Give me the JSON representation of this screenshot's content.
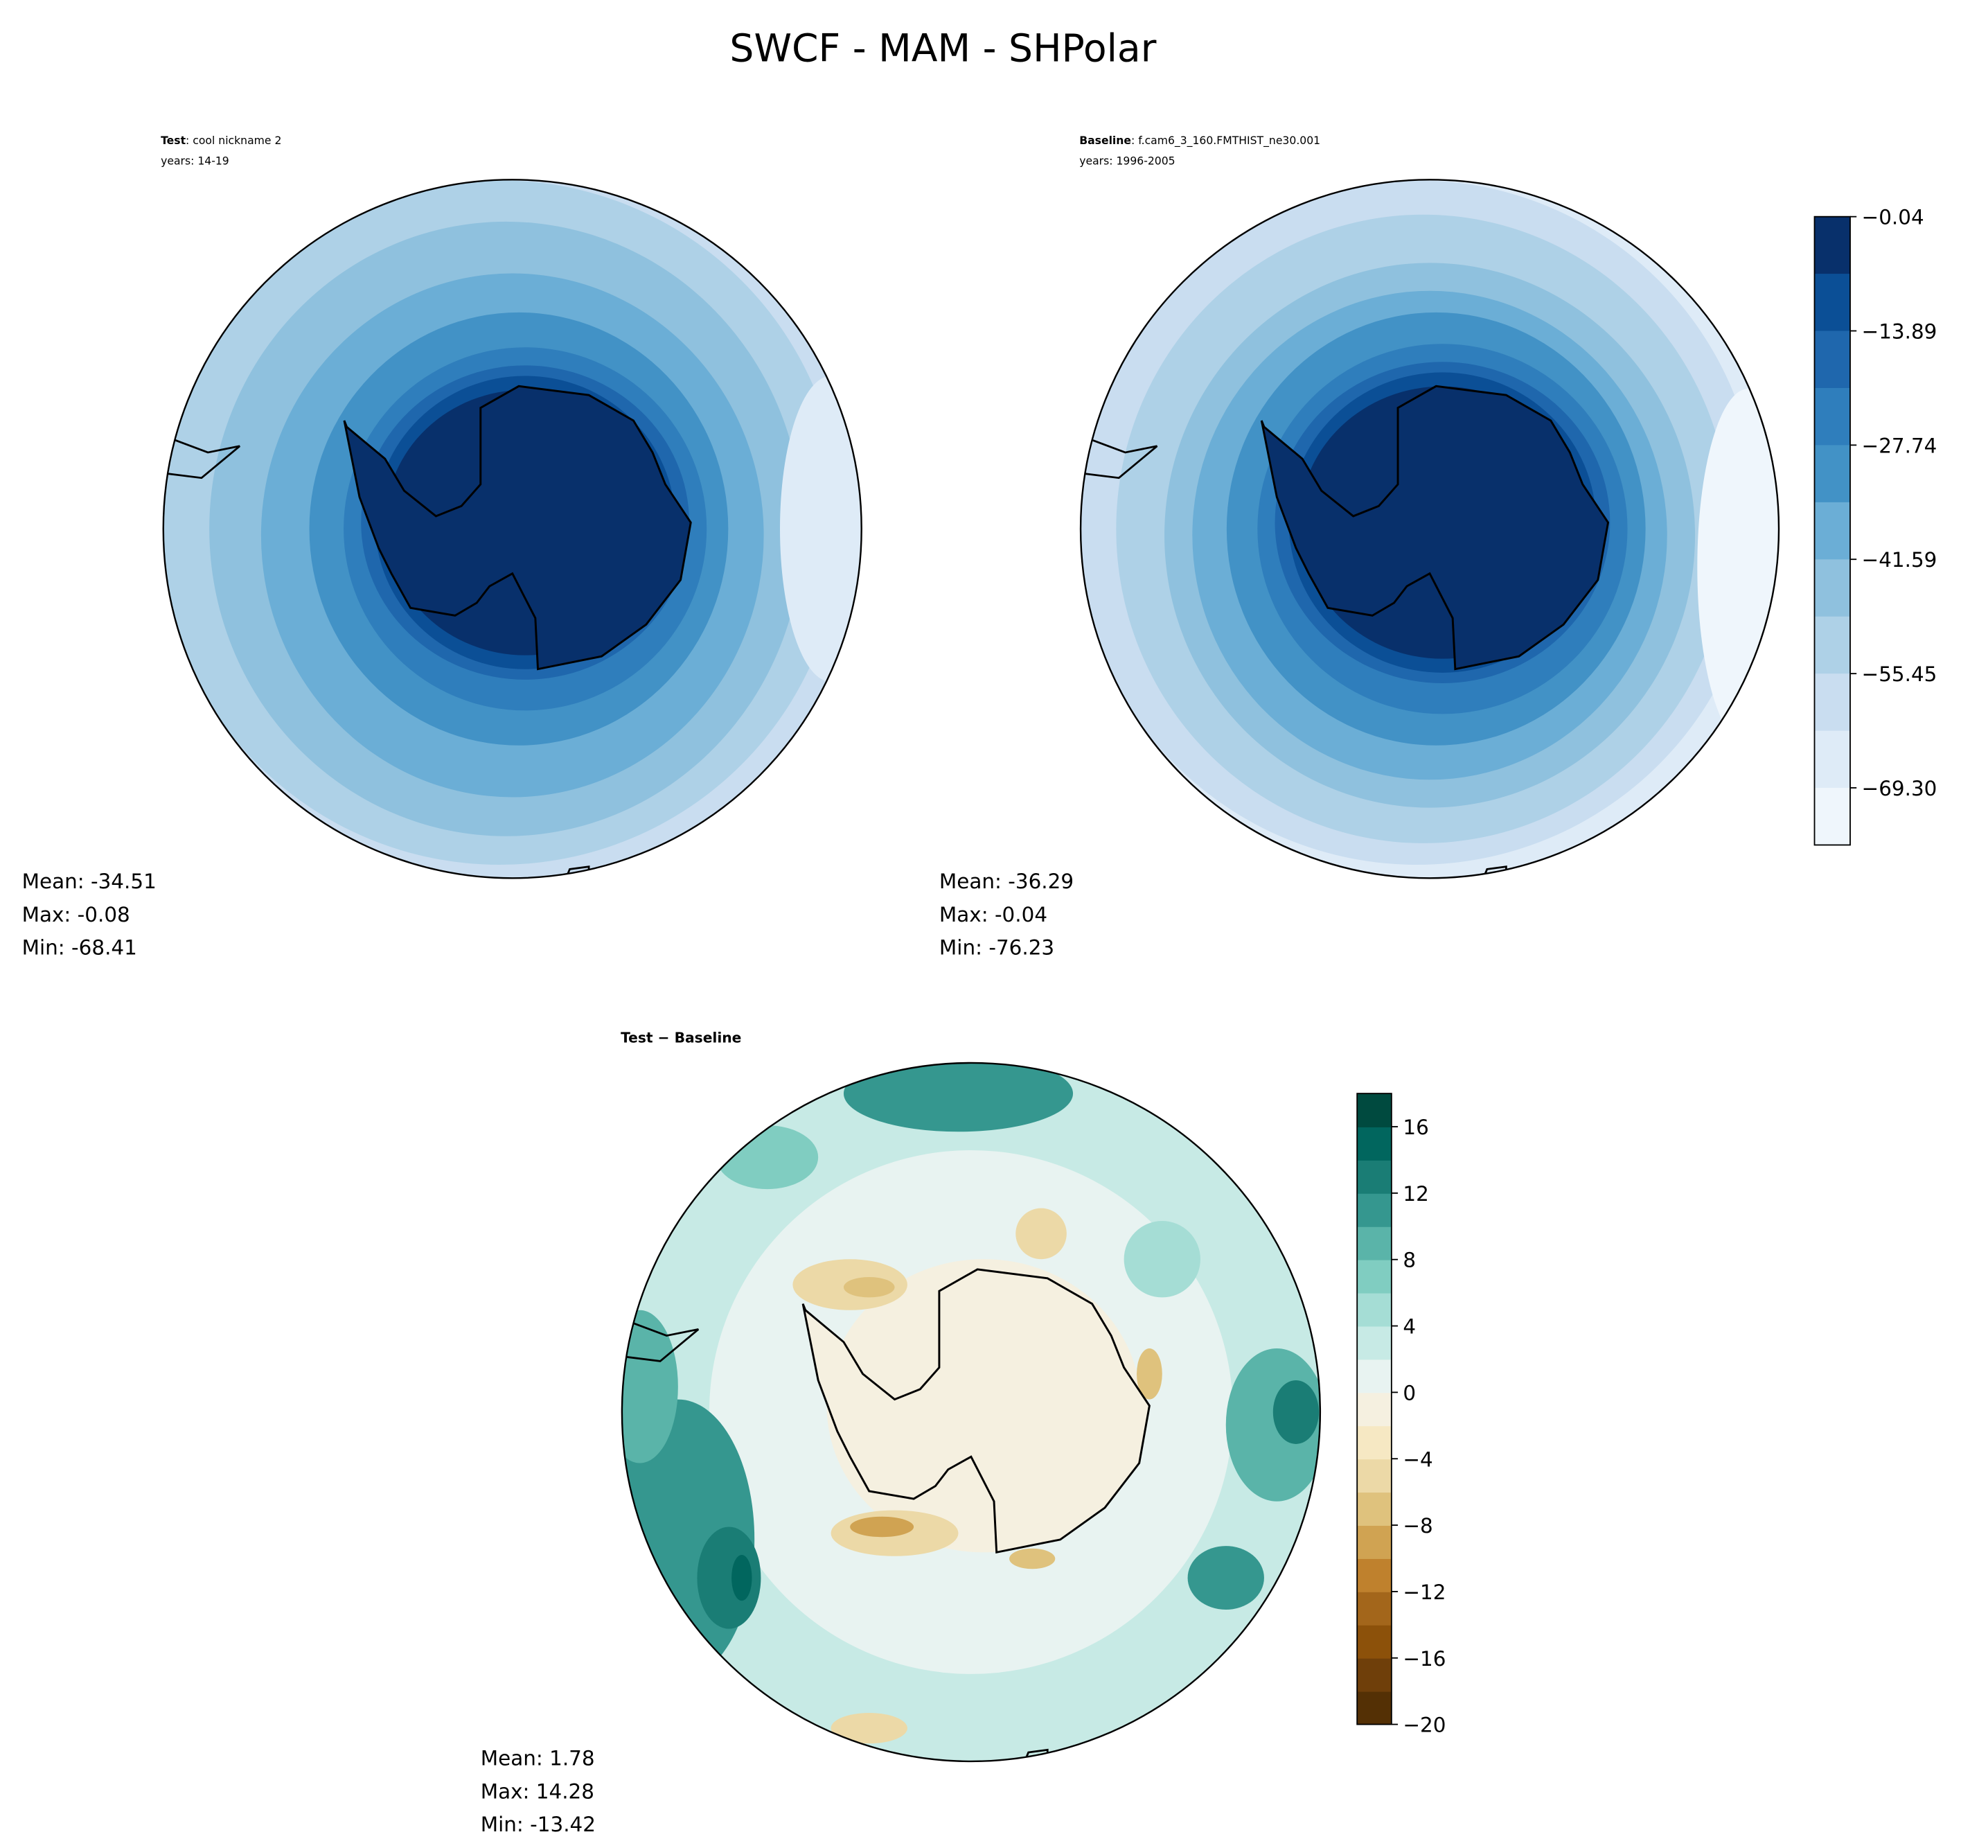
{
  "chart_data": {
    "type": "heatmap",
    "title": "SWCF - MAM - SHPolar",
    "panels": [
      {
        "id": "test",
        "label_bold": "Test",
        "label_rest": ": cool nickname 2",
        "years": "years: 14-19",
        "stats": {
          "mean": "Mean: -34.51",
          "max": "Max: -0.08",
          "min": "Min: -68.41"
        }
      },
      {
        "id": "baseline",
        "label_bold": "Baseline",
        "label_rest": ": f.cam6_3_160.FMTHIST_ne30.001",
        "years": "years: 1996-2005",
        "stats": {
          "mean": "Mean: -36.29",
          "max": "Max: -0.04",
          "min": "Min: -76.23"
        }
      },
      {
        "id": "diff",
        "label_bold": "Test − Baseline",
        "stats": {
          "mean": "Mean:  1.78",
          "max": "Max: 14.28",
          "min": "Min: -13.42"
        }
      }
    ],
    "colorbar_main": {
      "range": [
        -76.23,
        -0.04
      ],
      "ticks": [
        "−0.04",
        "−13.89",
        "−27.74",
        "−41.59",
        "−55.45",
        "−69.30"
      ],
      "tick_values": [
        -0.04,
        -13.89,
        -27.74,
        -41.59,
        -55.45,
        -69.3
      ],
      "colors": [
        "#08306b",
        "#0b4f96",
        "#1f67ad",
        "#2f7ebc",
        "#4292c6",
        "#6baed6",
        "#8fc1de",
        "#aed1e7",
        "#c9ddf0",
        "#deebf7",
        "#eff6fc"
      ]
    },
    "colorbar_diff": {
      "range": [
        -20,
        18
      ],
      "ticks": [
        "16",
        "12",
        "8",
        "4",
        "0",
        "−4",
        "−8",
        "−12",
        "−16",
        "−20"
      ],
      "tick_values": [
        16,
        12,
        8,
        4,
        0,
        -4,
        -8,
        -12,
        -16,
        -20
      ],
      "colors": [
        "#543005",
        "#6f3f0a",
        "#8c510a",
        "#a3661b",
        "#bf812d",
        "#d0a352",
        "#dfc27d",
        "#ecd9a7",
        "#f6e8c3",
        "#f5f0e0",
        "#e8f3f1",
        "#c7eae5",
        "#a5ddd5",
        "#80cdc1",
        "#5ab4a9",
        "#35978f",
        "#1a7d75",
        "#01665e",
        "#004a3f"
      ]
    }
  }
}
